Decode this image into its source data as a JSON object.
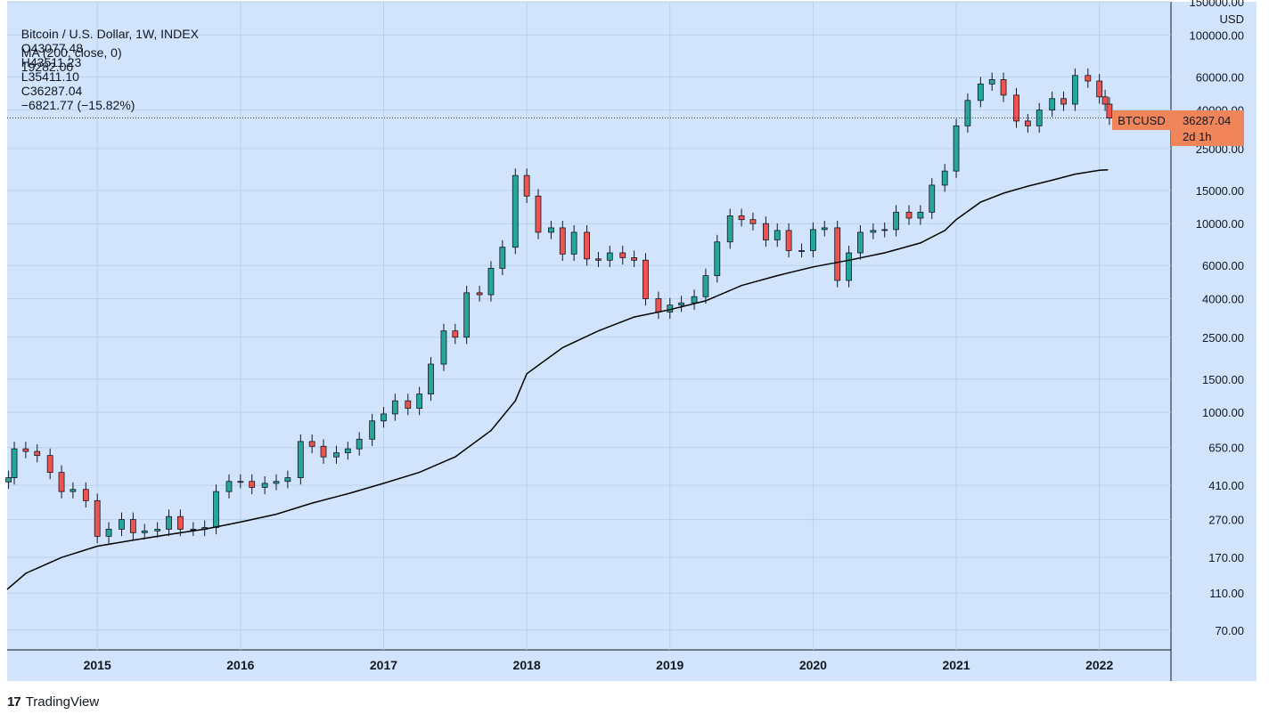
{
  "legend": {
    "symbol": "Bitcoin / U.S. Dollar, 1W, INDEX",
    "open": "O43077.48",
    "high": "H43511.23",
    "low": "L35411.10",
    "close": "C36287.04",
    "change": "−6821.77 (−15.82%)",
    "ma_label": "MA (200, close, 0)",
    "ma_value": "19282.00"
  },
  "price_tag": {
    "ticker": "BTCUSD",
    "price": "36287.04",
    "countdown": "2d 1h",
    "color": "#f0855a"
  },
  "footer": {
    "brand_mark": "17",
    "brand": "TradingView"
  },
  "colors": {
    "background": "#d1e4fb",
    "grid": "#b9d1ee",
    "up_candle": "#26a69a",
    "down_candle": "#ef5350",
    "ma_line": "#000000"
  },
  "chart_data": {
    "type": "line",
    "scale": "log",
    "currency": "USD",
    "y_ticks": [
      "150000.00",
      "100000.00",
      "60000.00",
      "40000.00",
      "25000.00",
      "15000.00",
      "10000.00",
      "6000.00",
      "4000.00",
      "2500.00",
      "1500.00",
      "1000.00",
      "650.00",
      "410.00",
      "270.00",
      "170.00",
      "110.00",
      "70.00"
    ],
    "x_ticks": [
      "2015",
      "2016",
      "2017",
      "2018",
      "2019",
      "2020",
      "2021",
      "2022"
    ],
    "ylim": [
      55,
      150000
    ],
    "xlim": [
      2014.37,
      2022.5
    ],
    "series": [
      {
        "name": "BTCUSD",
        "type": "candles",
        "points": [
          [
            2014.38,
            450
          ],
          [
            2014.42,
            640
          ],
          [
            2014.5,
            620
          ],
          [
            2014.58,
            590
          ],
          [
            2014.67,
            480
          ],
          [
            2014.75,
            380
          ],
          [
            2014.83,
            390
          ],
          [
            2014.92,
            340
          ],
          [
            2015.0,
            220
          ],
          [
            2015.08,
            240
          ],
          [
            2015.17,
            270
          ],
          [
            2015.25,
            230
          ],
          [
            2015.33,
            235
          ],
          [
            2015.42,
            240
          ],
          [
            2015.5,
            280
          ],
          [
            2015.58,
            240
          ],
          [
            2015.67,
            240
          ],
          [
            2015.75,
            245
          ],
          [
            2015.83,
            380
          ],
          [
            2015.92,
            430
          ],
          [
            2016.0,
            430
          ],
          [
            2016.08,
            400
          ],
          [
            2016.17,
            420
          ],
          [
            2016.25,
            430
          ],
          [
            2016.33,
            450
          ],
          [
            2016.42,
            700
          ],
          [
            2016.5,
            660
          ],
          [
            2016.58,
            580
          ],
          [
            2016.67,
            610
          ],
          [
            2016.75,
            640
          ],
          [
            2016.83,
            720
          ],
          [
            2016.92,
            900
          ],
          [
            2017.0,
            980
          ],
          [
            2017.08,
            1150
          ],
          [
            2017.17,
            1050
          ],
          [
            2017.25,
            1250
          ],
          [
            2017.33,
            1800
          ],
          [
            2017.42,
            2700
          ],
          [
            2017.5,
            2500
          ],
          [
            2017.58,
            4300
          ],
          [
            2017.67,
            4200
          ],
          [
            2017.75,
            5800
          ],
          [
            2017.83,
            7500
          ],
          [
            2017.92,
            18000
          ],
          [
            2018.0,
            14000
          ],
          [
            2018.08,
            9000
          ],
          [
            2018.17,
            9500
          ],
          [
            2018.25,
            6900
          ],
          [
            2018.33,
            9000
          ],
          [
            2018.42,
            6500
          ],
          [
            2018.5,
            6400
          ],
          [
            2018.58,
            7000
          ],
          [
            2018.67,
            6600
          ],
          [
            2018.75,
            6400
          ],
          [
            2018.83,
            4000
          ],
          [
            2018.92,
            3400
          ],
          [
            2019.0,
            3700
          ],
          [
            2019.08,
            3800
          ],
          [
            2019.17,
            4100
          ],
          [
            2019.25,
            5300
          ],
          [
            2019.33,
            8000
          ],
          [
            2019.42,
            11000
          ],
          [
            2019.5,
            10500
          ],
          [
            2019.58,
            10000
          ],
          [
            2019.67,
            8200
          ],
          [
            2019.75,
            9200
          ],
          [
            2019.83,
            7200
          ],
          [
            2019.92,
            7200
          ],
          [
            2020.0,
            9300
          ],
          [
            2020.08,
            9500
          ],
          [
            2020.17,
            5000
          ],
          [
            2020.25,
            7000
          ],
          [
            2020.33,
            9000
          ],
          [
            2020.42,
            9200
          ],
          [
            2020.5,
            9300
          ],
          [
            2020.58,
            11500
          ],
          [
            2020.67,
            10700
          ],
          [
            2020.75,
            11500
          ],
          [
            2020.83,
            16000
          ],
          [
            2020.92,
            19000
          ],
          [
            2021.0,
            33000
          ],
          [
            2021.08,
            45000
          ],
          [
            2021.17,
            55000
          ],
          [
            2021.25,
            58000
          ],
          [
            2021.33,
            48000
          ],
          [
            2021.42,
            35000
          ],
          [
            2021.5,
            33000
          ],
          [
            2021.58,
            40000
          ],
          [
            2021.67,
            46000
          ],
          [
            2021.75,
            43000
          ],
          [
            2021.83,
            61000
          ],
          [
            2021.92,
            57000
          ],
          [
            2022.0,
            47000
          ],
          [
            2022.04,
            43000
          ],
          [
            2022.07,
            36287
          ]
        ]
      },
      {
        "name": "MA (200, close, 0)",
        "type": "line",
        "points": [
          [
            2014.37,
            115
          ],
          [
            2014.5,
            140
          ],
          [
            2014.75,
            170
          ],
          [
            2015.0,
            195
          ],
          [
            2015.25,
            210
          ],
          [
            2015.5,
            225
          ],
          [
            2015.75,
            240
          ],
          [
            2016.0,
            262
          ],
          [
            2016.25,
            288
          ],
          [
            2016.5,
            330
          ],
          [
            2016.75,
            370
          ],
          [
            2017.0,
            420
          ],
          [
            2017.25,
            480
          ],
          [
            2017.5,
            580
          ],
          [
            2017.75,
            800
          ],
          [
            2017.92,
            1150
          ],
          [
            2018.0,
            1600
          ],
          [
            2018.25,
            2200
          ],
          [
            2018.5,
            2700
          ],
          [
            2018.75,
            3200
          ],
          [
            2019.0,
            3500
          ],
          [
            2019.25,
            3900
          ],
          [
            2019.5,
            4700
          ],
          [
            2019.75,
            5300
          ],
          [
            2020.0,
            5900
          ],
          [
            2020.25,
            6400
          ],
          [
            2020.5,
            7000
          ],
          [
            2020.75,
            7900
          ],
          [
            2020.92,
            9200
          ],
          [
            2021.0,
            10500
          ],
          [
            2021.17,
            13000
          ],
          [
            2021.33,
            14500
          ],
          [
            2021.5,
            15800
          ],
          [
            2021.67,
            17000
          ],
          [
            2021.83,
            18300
          ],
          [
            2022.0,
            19200
          ],
          [
            2022.06,
            19282
          ]
        ]
      }
    ]
  }
}
